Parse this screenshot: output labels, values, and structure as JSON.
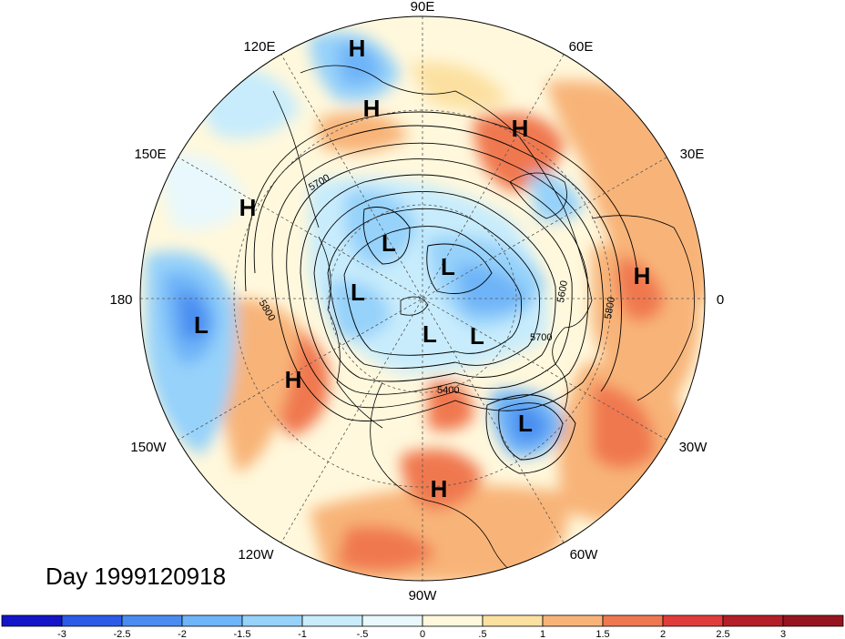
{
  "title": "Day 1999120918",
  "longitude_labels": [
    {
      "id": "90e",
      "text": "90E"
    },
    {
      "id": "60e",
      "text": "60E"
    },
    {
      "id": "30e",
      "text": "30E"
    },
    {
      "id": "0",
      "text": "0"
    },
    {
      "id": "30w",
      "text": "30W"
    },
    {
      "id": "60w",
      "text": "60W"
    },
    {
      "id": "90w",
      "text": "90W"
    },
    {
      "id": "120w",
      "text": "120W"
    },
    {
      "id": "150w",
      "text": "150W"
    },
    {
      "id": "180",
      "text": "180"
    },
    {
      "id": "150e",
      "text": "150E"
    },
    {
      "id": "120e",
      "text": "120E"
    }
  ],
  "pressure_centers": [
    {
      "type": "H",
      "where": "Central Siberia (north)"
    },
    {
      "type": "H",
      "where": "Central Siberia"
    },
    {
      "type": "H",
      "where": "Urals"
    },
    {
      "type": "H",
      "where": "Northwest Pacific"
    },
    {
      "type": "H",
      "where": "Northern Africa"
    },
    {
      "type": "H",
      "where": "Northeast Pacific"
    },
    {
      "type": "H",
      "where": "Gulf of Mexico"
    },
    {
      "type": "L",
      "where": "East Siberian Sea"
    },
    {
      "type": "L",
      "where": "Arctic (Laptev)"
    },
    {
      "type": "L",
      "where": "Arctic (Chukchi)"
    },
    {
      "type": "L",
      "where": "Arctic (north of Canada)"
    },
    {
      "type": "L",
      "where": "Canadian Archipelago"
    },
    {
      "type": "L",
      "where": "Central Pacific"
    },
    {
      "type": "L",
      "where": "North Atlantic"
    }
  ],
  "contour_labels": [
    "5700",
    "5800",
    "5700",
    "5800",
    "5600",
    "5400"
  ],
  "colorbar": {
    "labels": [
      "-3",
      "-2.5",
      "-2",
      "-1.5",
      "-1",
      "-.5",
      "0",
      ".5",
      "1",
      "1.5",
      "2",
      "2.5",
      "3"
    ],
    "colors": [
      "#1414c8",
      "#2d5ae6",
      "#4a8cf0",
      "#6eb4f8",
      "#96d2fa",
      "#c8ecfc",
      "#e8f8fc",
      "#fff8dc",
      "#fce0a0",
      "#f8b478",
      "#f07850",
      "#e03c3c",
      "#b41e28",
      "#96141e"
    ]
  }
}
